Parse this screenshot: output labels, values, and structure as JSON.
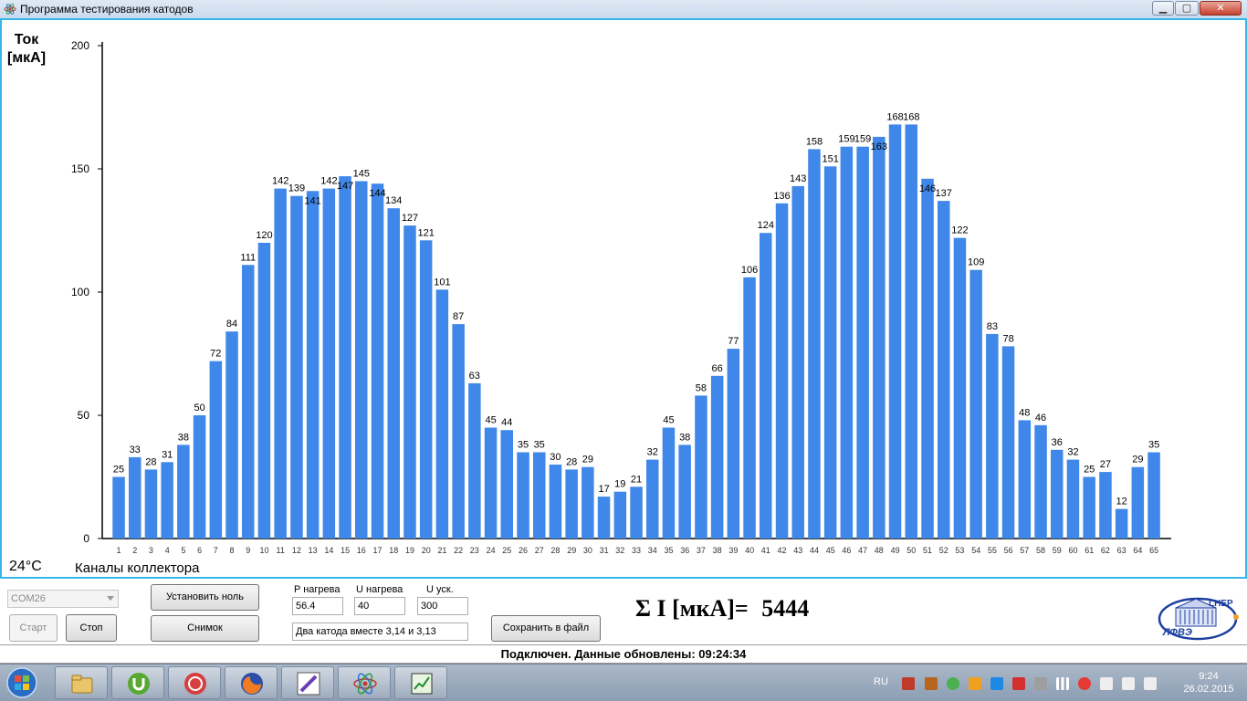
{
  "window": {
    "title": "Программа тестирования катодов",
    "min_glyph": "▁",
    "max_glyph": "▢",
    "close_glyph": "✕"
  },
  "chart": {
    "ylabel_line1": "Ток",
    "ylabel_line2": "[мкА]",
    "xlabel": "Каналы коллектора",
    "temperature": "24°C"
  },
  "chart_data": {
    "type": "bar",
    "title": "",
    "xlabel": "Каналы коллектора",
    "ylabel": "Ток [мкА]",
    "ylim": [
      0,
      200
    ],
    "yticks": [
      0,
      50,
      100,
      150,
      200
    ],
    "color": "#3f87e8",
    "categories": [
      "1",
      "2",
      "3",
      "4",
      "5",
      "6",
      "7",
      "8",
      "9",
      "10",
      "11",
      "12",
      "13",
      "14",
      "15",
      "16",
      "17",
      "18",
      "19",
      "20",
      "21",
      "22",
      "23",
      "24",
      "25",
      "26",
      "27",
      "28",
      "29",
      "30",
      "31",
      "32",
      "33",
      "34",
      "35",
      "36",
      "37",
      "38",
      "39",
      "40",
      "41",
      "42",
      "43",
      "44",
      "45",
      "46",
      "47",
      "48",
      "49",
      "50",
      "51",
      "52",
      "53",
      "54",
      "55",
      "56",
      "57",
      "58",
      "59",
      "60",
      "61",
      "62",
      "63",
      "64",
      "65"
    ],
    "values": [
      25,
      33,
      28,
      31,
      38,
      50,
      72,
      84,
      111,
      120,
      142,
      139,
      141,
      142,
      147,
      145,
      144,
      134,
      127,
      121,
      101,
      87,
      63,
      45,
      44,
      35,
      35,
      30,
      28,
      29,
      17,
      19,
      21,
      32,
      45,
      38,
      58,
      66,
      77,
      106,
      124,
      136,
      143,
      158,
      151,
      159,
      159,
      163,
      168,
      168,
      146,
      137,
      122,
      109,
      83,
      78,
      48,
      46,
      36,
      32,
      25,
      27,
      12,
      29,
      35
    ],
    "inside_labels": [
      12,
      14,
      16,
      47,
      50
    ],
    "grid": false
  },
  "controls": {
    "port": "COM26",
    "start_label": "Старт",
    "stop_label": "Стоп",
    "zero_label": "Установить ноль",
    "snapshot_label": "Снимок",
    "p_heat_label": "P нагрева",
    "p_heat_value": "56.4",
    "u_heat_label": "U нагрева",
    "u_heat_value": "40",
    "u_acc_label": "U уск.",
    "u_acc_value": "300",
    "comment_value": "Два катода вместе 3,14 и 3,13",
    "save_label": "Сохранить в файл",
    "sum_label": "Σ I [мкА]=",
    "sum_value": "5444"
  },
  "logo": {
    "top_text": "LHEP",
    "bottom_text": "ЛФВЭ"
  },
  "status": {
    "text": "Подключен. Данные обновлены:  09:24:34"
  },
  "taskbar": {
    "language": "RU",
    "time": "9:24",
    "date": "26.02.2015",
    "apps": [
      "explorer-icon",
      "utorrent-icon",
      "media-player-icon",
      "firefox-icon",
      "pen-app-icon",
      "atom-app-icon",
      "chart-app-icon"
    ]
  }
}
